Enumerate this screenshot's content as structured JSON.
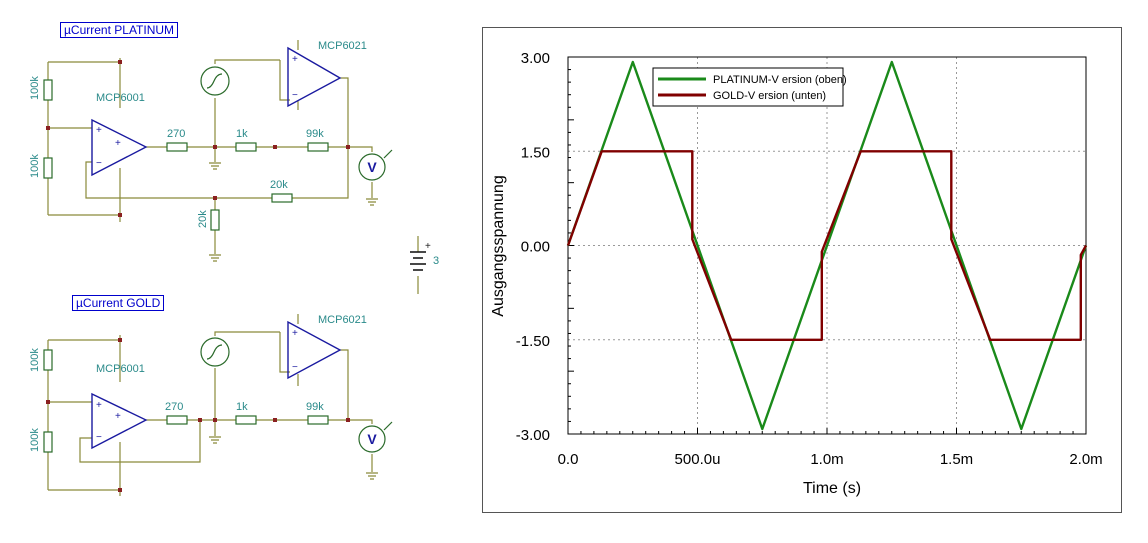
{
  "circuits": [
    {
      "title": "µCurrent PLATINUM",
      "opamp1": "MCP6001",
      "opamp2": "MCP6021",
      "r_top": "100k",
      "r_bottom": "100k",
      "r_series": "270",
      "r_1k": "1k",
      "r_99k": "99k",
      "r_20k_h": "20k",
      "r_20k_v": "20k",
      "meter": "V"
    },
    {
      "title": "µCurrent GOLD",
      "opamp1": "MCP6001",
      "opamp2": "MCP6021",
      "r_top": "100k",
      "r_bottom": "100k",
      "r_series": "270",
      "r_1k": "1k",
      "r_99k": "99k",
      "meter": "V"
    }
  ],
  "battery": {
    "label": "3",
    "plus": "+"
  },
  "opamp_signs": {
    "plus": "+",
    "minus": "−"
  },
  "chart_data": {
    "type": "line",
    "xlabel": "Time (s)",
    "ylabel": "Ausgangsspannung",
    "xlim": [
      0,
      0.002
    ],
    "ylim": [
      -3,
      3
    ],
    "x_ticks": [
      0,
      0.0005,
      0.001,
      0.0015,
      0.002
    ],
    "x_tick_labels": [
      "0.0",
      "500.0u",
      "1.0m",
      "1.5m",
      "2.0m"
    ],
    "y_ticks": [
      3,
      1.5,
      0,
      -1.5,
      -3
    ],
    "y_tick_labels": [
      "3.00",
      "1.50",
      "0.00",
      "-1.50",
      "-3.00"
    ],
    "grid": true,
    "legend_position": "top-center",
    "series": [
      {
        "name": "PLATINUM-V ersion (oben)",
        "color": "#1a8a1a",
        "x": [
          0,
          0.00025,
          0.00075,
          0.00125,
          0.00175,
          0.002
        ],
        "y": [
          0,
          2.92,
          -2.92,
          2.92,
          -2.92,
          0
        ]
      },
      {
        "name": "GOLD-V ersion (unten)",
        "color": "#800000",
        "x": [
          0,
          0.00013,
          0.00048,
          0.00048,
          0.00063,
          0.00098,
          0.00098,
          0.00113,
          0.00148,
          0.00148,
          0.00163,
          0.00198,
          0.00198,
          0.002
        ],
        "y": [
          0,
          1.5,
          1.5,
          0.1,
          -1.5,
          -1.5,
          -0.1,
          1.5,
          1.5,
          0.1,
          -1.5,
          -1.5,
          -0.15,
          0
        ]
      }
    ]
  }
}
